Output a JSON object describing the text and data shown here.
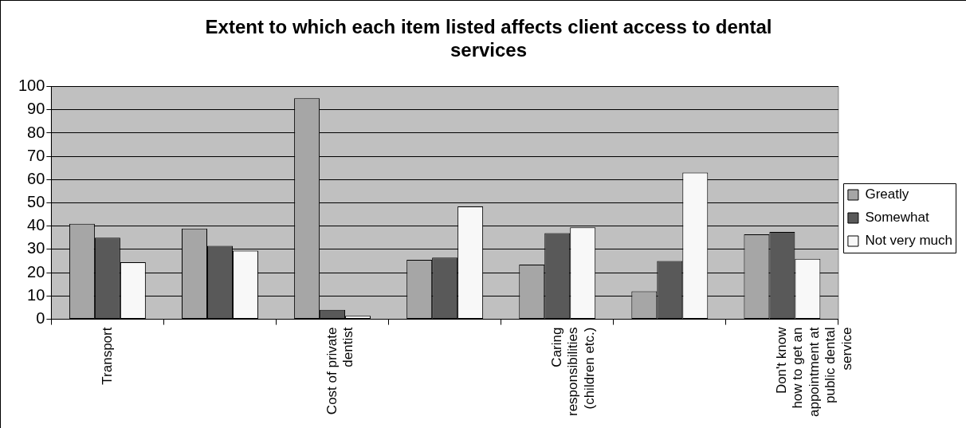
{
  "chart_data": {
    "type": "bar",
    "title": "Extent to which each item listed affects client access to dental services",
    "categories": [
      "Transport",
      null,
      "Cost of private dentist",
      null,
      "Caring responsibilities (children etc.)",
      null,
      "Don't know how to get an appointment at public dental service"
    ],
    "series": [
      {
        "name": "Greatly",
        "color": "#a6a6a6",
        "values": [
          41,
          39,
          95,
          25.5,
          23.5,
          12,
          36.5
        ]
      },
      {
        "name": "Somewhat",
        "color": "#595959",
        "values": [
          35,
          31.5,
          4,
          26.5,
          37,
          25,
          37.5
        ]
      },
      {
        "name": "Not very much",
        "color": "#f8f8f8",
        "values": [
          24.5,
          29.5,
          1.5,
          48.5,
          39.5,
          63,
          26
        ]
      }
    ],
    "ylim": [
      0,
      100
    ],
    "yticks": [
      0,
      10,
      20,
      30,
      40,
      50,
      60,
      70,
      80,
      90,
      100
    ],
    "grid": "y",
    "legend": "right"
  }
}
